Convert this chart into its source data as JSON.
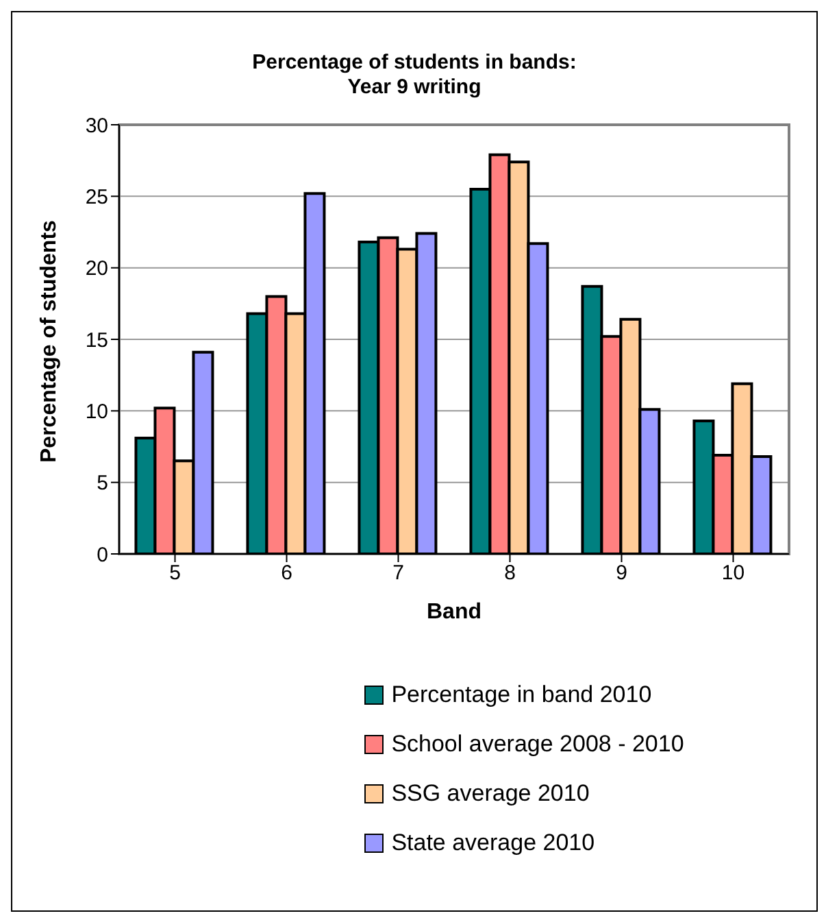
{
  "chart_data": {
    "type": "bar",
    "title": "Percentage of students in bands:\nYear 9 writing",
    "xlabel": "Band",
    "ylabel": "Percentage of students",
    "categories": [
      "5",
      "6",
      "7",
      "8",
      "9",
      "10"
    ],
    "series": [
      {
        "name": "Percentage in band 2010",
        "color": "#008080",
        "values": [
          8.1,
          16.8,
          21.8,
          25.5,
          18.7,
          9.3
        ]
      },
      {
        "name": "School average 2008 - 2010",
        "color": "#ff8080",
        "values": [
          10.2,
          18.0,
          22.1,
          27.9,
          15.2,
          6.9
        ]
      },
      {
        "name": "SSG average 2010",
        "color": "#ffcc99",
        "values": [
          6.5,
          16.8,
          21.3,
          27.4,
          16.4,
          11.9
        ]
      },
      {
        "name": "State average 2010",
        "color": "#9999ff",
        "values": [
          14.1,
          25.2,
          22.4,
          21.7,
          10.1,
          6.8
        ]
      }
    ],
    "ylim": [
      0,
      30
    ],
    "yticks": [
      0,
      5,
      10,
      15,
      20,
      25,
      30
    ],
    "grid": "y",
    "legend": "bottom"
  }
}
